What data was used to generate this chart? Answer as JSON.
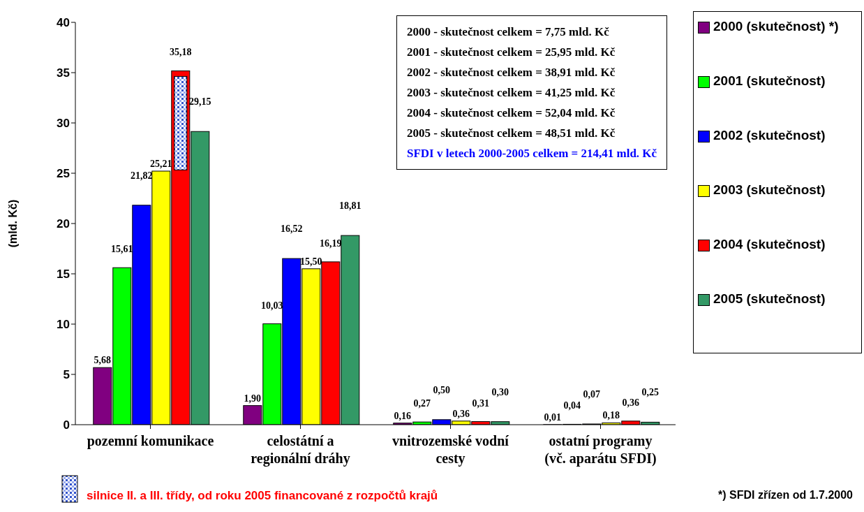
{
  "chart_data": {
    "type": "bar",
    "ylabel": "(mld. Kč)",
    "categories": [
      "pozemní komunikace",
      "celostátní a regionální dráhy",
      "vnitrozemské vodní cesty",
      "ostatní programy (vč. aparátu SFDI)"
    ],
    "series": [
      {
        "name": "2000 (skutečnost) *)",
        "color": "#800080",
        "values": [
          5.68,
          1.9,
          0.16,
          0.01
        ],
        "value_labels": [
          "5,68",
          "1,90",
          "0,16",
          "0,01"
        ]
      },
      {
        "name": "2001 (skutečnost)",
        "color": "#00ff00",
        "values": [
          15.61,
          10.03,
          0.27,
          0.04
        ],
        "value_labels": [
          "15,61",
          "10,03",
          "0,27",
          "0,04"
        ]
      },
      {
        "name": "2002 (skutečnost)",
        "color": "#0000ff",
        "values": [
          21.82,
          16.52,
          0.5,
          0.07
        ],
        "value_labels": [
          "21,82",
          "16,52",
          "0,50",
          "0,07"
        ]
      },
      {
        "name": "2003 (skutečnost)",
        "color": "#ffff00",
        "values": [
          25.21,
          15.5,
          0.36,
          0.18
        ],
        "value_labels": [
          "25,21",
          "15,50",
          "0,36",
          "0,18"
        ]
      },
      {
        "name": "2004 (skutečnost)",
        "color": "#ff0000",
        "values": [
          35.18,
          16.19,
          0.31,
          0.36
        ],
        "value_labels": [
          "35,18",
          "16,19",
          "0,31",
          "0,36"
        ]
      },
      {
        "name": "2005 (skutečnost)",
        "color": "#339966",
        "values": [
          29.15,
          18.81,
          0.3,
          0.25
        ],
        "value_labels": [
          "29,15",
          "18,81",
          "0,30",
          "0,25"
        ]
      }
    ],
    "ylim": [
      0,
      40
    ],
    "yticks": [
      0,
      5,
      10,
      15,
      20,
      25,
      30,
      35,
      40
    ],
    "legend": "right",
    "annotations": [
      "2000 - skutečnost celkem = 7,75 mld. Kč",
      "2001 - skutečnost celkem = 25,95 mld. Kč",
      "2002 - skutečnost celkem = 38,91 mld. Kč",
      "2003 - skutečnost celkem = 41,25 mld. Kč",
      "2004 - skutečnost celkem = 52,04 mld. Kč",
      "2005 - skutečnost celkem = 48,51 mld. Kč",
      "SFDI v letech 2000-2005 celkem = 214,41 mld. Kč",
      "*) SFDI zřízen od 1.7.2000",
      "silnice II. a III. třídy, od roku 2005 financované z rozpočtů krajů"
    ]
  }
}
